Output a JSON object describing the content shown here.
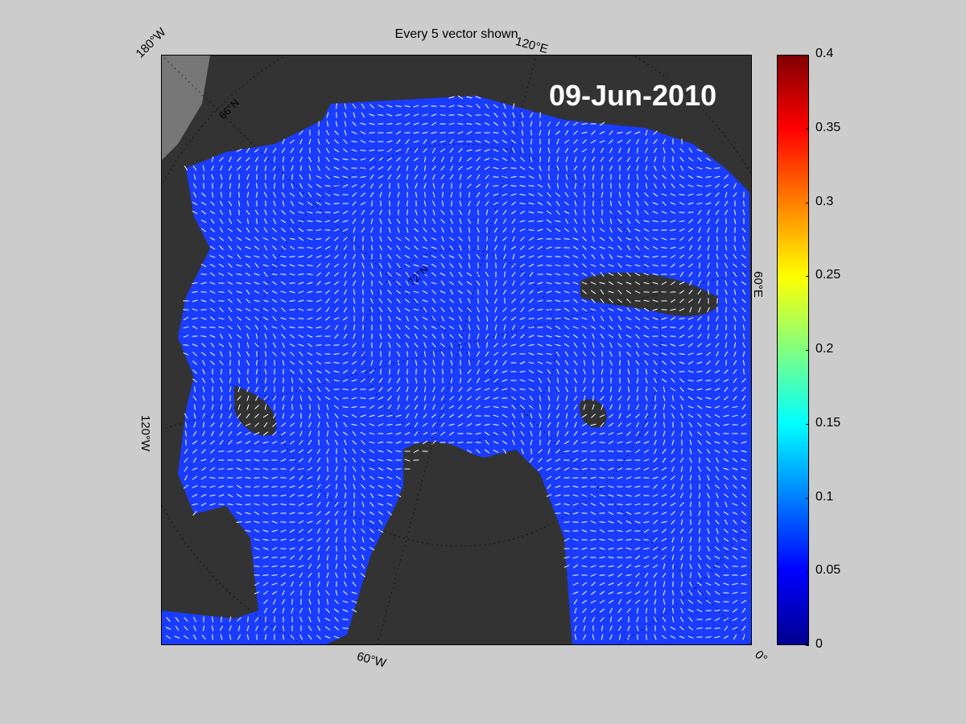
{
  "title": "Every 5 vector shown",
  "date_label": "09-Jun-2010",
  "lon_labels": {
    "top_left": "180°W",
    "top_mid": "120°E",
    "right": "60°E",
    "bottom_right": "0°",
    "bottom_mid": "60°W",
    "left": "120°W",
    "lat": "66°N",
    "lat_inner": "72°N"
  },
  "colorbar": {
    "ticks": [
      "0",
      "0.05",
      "0.1",
      "0.15",
      "0.2",
      "0.25",
      "0.3",
      "0.35",
      "0.4"
    ],
    "min": 0,
    "max": 0.4,
    "colormap": "jet"
  },
  "colors": {
    "land": "#333333",
    "ocean_fill": "#1a3cff",
    "figure_bg": "#cccccc",
    "arrow": "#ffffff"
  }
}
